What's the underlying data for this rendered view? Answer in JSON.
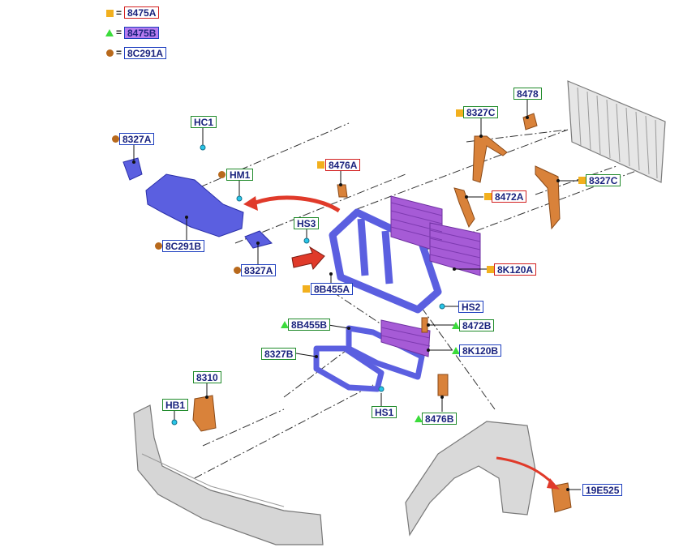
{
  "legend": [
    {
      "symbol": "square",
      "eq": "=",
      "code": "8475A"
    },
    {
      "symbol": "triangle",
      "eq": "=",
      "code": "8475B"
    },
    {
      "symbol": "circle",
      "eq": "=",
      "code": "8C291A"
    }
  ],
  "labels": {
    "hc1": "HC1",
    "l8327a_top": "8327A",
    "hm1": "HM1",
    "l8c291b": "8C291B",
    "l8327a_bottom": "8327A",
    "hs3": "HS3",
    "l8476a": "8476A",
    "l8b455a": "8B455A",
    "l8327c_top": "8327C",
    "l8478": "8478",
    "l8472a": "8472A",
    "l8327c_right": "8327C",
    "l8k120a": "8K120A",
    "hs2": "HS2",
    "l8b455b": "8B455B",
    "l8472b": "8472B",
    "l8327b": "8327B",
    "l8k120b": "8K120B",
    "l8310": "8310",
    "hb1": "HB1",
    "hs1": "HS1",
    "l8476b": "8476B",
    "l19e525": "19E525"
  },
  "colors": {
    "part_blue": "#5b5fe0",
    "part_orange": "#d9823a",
    "part_purple": "#a65bd6",
    "part_grey": "#d0d0d0",
    "arrow_red": "#e03a2a",
    "legend_square": "#f2b01e",
    "legend_triangle": "#3bdc3b",
    "legend_circle": "#b8691c"
  }
}
